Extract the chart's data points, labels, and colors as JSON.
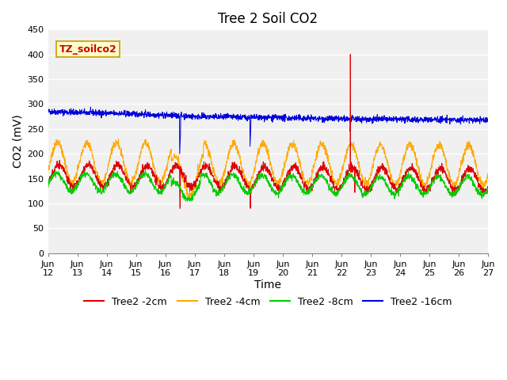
{
  "title": "Tree 2 Soil CO2",
  "xlabel": "Time",
  "ylabel": "CO2 (mV)",
  "ylim": [
    0,
    450
  ],
  "yticks": [
    0,
    50,
    100,
    150,
    200,
    250,
    300,
    350,
    400,
    450
  ],
  "x_tick_labels": [
    "Jun 12",
    "Jun 13",
    "Jun 14",
    "Jun 15",
    "Jun 16",
    "Jun 17",
    "Jun 18",
    "Jun 19",
    "Jun 20",
    "Jun 21",
    "Jun 22",
    "Jun 23",
    "Jun 24",
    "Jun 25",
    "Jun 26",
    "Jun 27"
  ],
  "legend_entries": [
    "Tree2 -2cm",
    "Tree2 -4cm",
    "Tree2 -8cm",
    "Tree2 -16cm"
  ],
  "colors": {
    "2cm": "#dd0000",
    "4cm": "#ffaa00",
    "8cm": "#00cc00",
    "16cm": "#0000dd"
  },
  "fig_bg": "#ffffff",
  "plot_bg": "#f0f0f0",
  "grid_color": "#ffffff",
  "annotation_box_text": "TZ_soilco2",
  "annotation_box_facecolor": "#ffffcc",
  "annotation_box_edgecolor": "#cc9900",
  "annotation_text_color": "#cc0000",
  "title_fontsize": 12,
  "axis_label_fontsize": 10,
  "tick_fontsize": 8,
  "legend_fontsize": 9
}
